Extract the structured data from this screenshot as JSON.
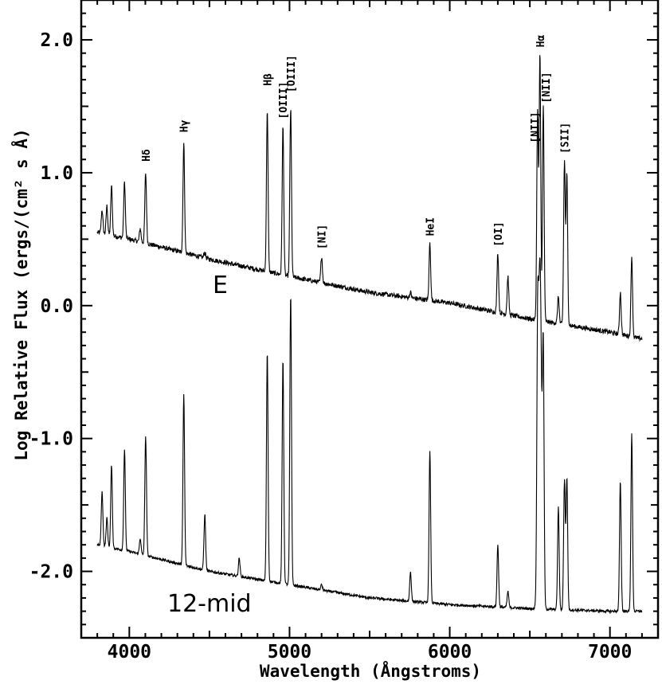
{
  "chart_data": {
    "type": "line",
    "title": "",
    "xlabel": "Wavelength (Ångstroms)",
    "ylabel": "Log Relative Flux (ergs/(cm² s Å)",
    "xlim": [
      3700,
      7300
    ],
    "ylim": [
      -2.5,
      2.3
    ],
    "x_ticks": [
      4000,
      5000,
      6000,
      7000
    ],
    "x_tick_labels": [
      "4000",
      "5000",
      "6000",
      "7000"
    ],
    "y_ticks": [
      2.0,
      1.0,
      0.0,
      -1.0,
      -2.0
    ],
    "y_tick_labels": [
      "2.0",
      "1.0",
      "0.0",
      "-1.0",
      "-2.0"
    ],
    "grid": false,
    "series": [
      {
        "name": "E",
        "continuum": [
          [
            3800,
            0.55
          ],
          [
            4000,
            0.5
          ],
          [
            4500,
            0.35
          ],
          [
            5000,
            0.22
          ],
          [
            5500,
            0.1
          ],
          [
            6000,
            0.02
          ],
          [
            6500,
            -0.1
          ],
          [
            7000,
            -0.2
          ],
          [
            7200,
            -0.25
          ]
        ],
        "lines": [
          {
            "x": 3830,
            "peak": 0.72
          },
          {
            "x": 3860,
            "peak": 0.75
          },
          {
            "x": 3889,
            "peak": 0.9
          },
          {
            "x": 3970,
            "peak": 0.93
          },
          {
            "x": 4068,
            "peak": 0.58
          },
          {
            "x": 4102,
            "peak": 1.0
          },
          {
            "x": 4340,
            "peak": 1.22
          },
          {
            "x": 4471,
            "peak": 0.4
          },
          {
            "x": 4861,
            "peak": 1.47
          },
          {
            "x": 4959,
            "peak": 1.35
          },
          {
            "x": 5007,
            "peak": 1.48
          },
          {
            "x": 5200,
            "peak": 0.37
          },
          {
            "x": 5755,
            "peak": 0.1
          },
          {
            "x": 5876,
            "peak": 0.47
          },
          {
            "x": 6300,
            "peak": 0.4
          },
          {
            "x": 6363,
            "peak": 0.22
          },
          {
            "x": 6548,
            "peak": 1.45
          },
          {
            "x": 6563,
            "peak": 1.88
          },
          {
            "x": 6584,
            "peak": 1.5
          },
          {
            "x": 6678,
            "peak": 0.07
          },
          {
            "x": 6716,
            "peak": 1.08
          },
          {
            "x": 6731,
            "peak": 0.98
          },
          {
            "x": 7065,
            "peak": 0.1
          },
          {
            "x": 7136,
            "peak": 0.37
          }
        ]
      },
      {
        "name": "12-mid",
        "continuum": [
          [
            3800,
            -1.8
          ],
          [
            4000,
            -1.85
          ],
          [
            4500,
            -2.0
          ],
          [
            5000,
            -2.1
          ],
          [
            5500,
            -2.2
          ],
          [
            6000,
            -2.25
          ],
          [
            6500,
            -2.28
          ],
          [
            7000,
            -2.3
          ],
          [
            7200,
            -2.3
          ]
        ],
        "lines": [
          {
            "x": 3830,
            "peak": -1.4
          },
          {
            "x": 3860,
            "peak": -1.6
          },
          {
            "x": 3889,
            "peak": -1.2
          },
          {
            "x": 3970,
            "peak": -1.08
          },
          {
            "x": 4068,
            "peak": -1.75
          },
          {
            "x": 4102,
            "peak": -0.98
          },
          {
            "x": 4340,
            "peak": -0.67
          },
          {
            "x": 4471,
            "peak": -1.57
          },
          {
            "x": 4686,
            "peak": -1.9
          },
          {
            "x": 4861,
            "peak": -0.35
          },
          {
            "x": 4959,
            "peak": -0.4
          },
          {
            "x": 5007,
            "peak": 0.08
          },
          {
            "x": 5200,
            "peak": -2.1
          },
          {
            "x": 5540,
            "peak": -2.2
          },
          {
            "x": 5755,
            "peak": -2.0
          },
          {
            "x": 5876,
            "peak": -1.1
          },
          {
            "x": 6300,
            "peak": -1.8
          },
          {
            "x": 6363,
            "peak": -2.15
          },
          {
            "x": 6548,
            "peak": -0.8
          },
          {
            "x": 6563,
            "peak": 0.35
          },
          {
            "x": 6584,
            "peak": -0.5
          },
          {
            "x": 6678,
            "peak": -1.52
          },
          {
            "x": 6716,
            "peak": -1.32
          },
          {
            "x": 6731,
            "peak": -1.3
          },
          {
            "x": 7065,
            "peak": -1.32
          },
          {
            "x": 7136,
            "peak": -0.97
          }
        ]
      }
    ],
    "line_labels": [
      {
        "text": "Hδ",
        "x": 4102,
        "y": 1.06
      },
      {
        "text": "Hγ",
        "x": 4340,
        "y": 1.28
      },
      {
        "text": "Hβ",
        "x": 4861,
        "y": 1.63
      },
      {
        "text": "[OIII]",
        "x": 4959,
        "y": 1.38
      },
      {
        "text": "[OIII]",
        "x": 5007,
        "y": 1.58
      },
      {
        "text": "[NI]",
        "x": 5200,
        "y": 0.4
      },
      {
        "text": "HeI",
        "x": 5876,
        "y": 0.5
      },
      {
        "text": "[OI]",
        "x": 6300,
        "y": 0.42
      },
      {
        "text": "[NII]",
        "x": 6530,
        "y": 1.2
      },
      {
        "text": "Hα",
        "x": 6563,
        "y": 1.92
      },
      {
        "text": "[NII]",
        "x": 6600,
        "y": 1.5
      },
      {
        "text": "[SII]",
        "x": 6716,
        "y": 1.12
      }
    ]
  }
}
